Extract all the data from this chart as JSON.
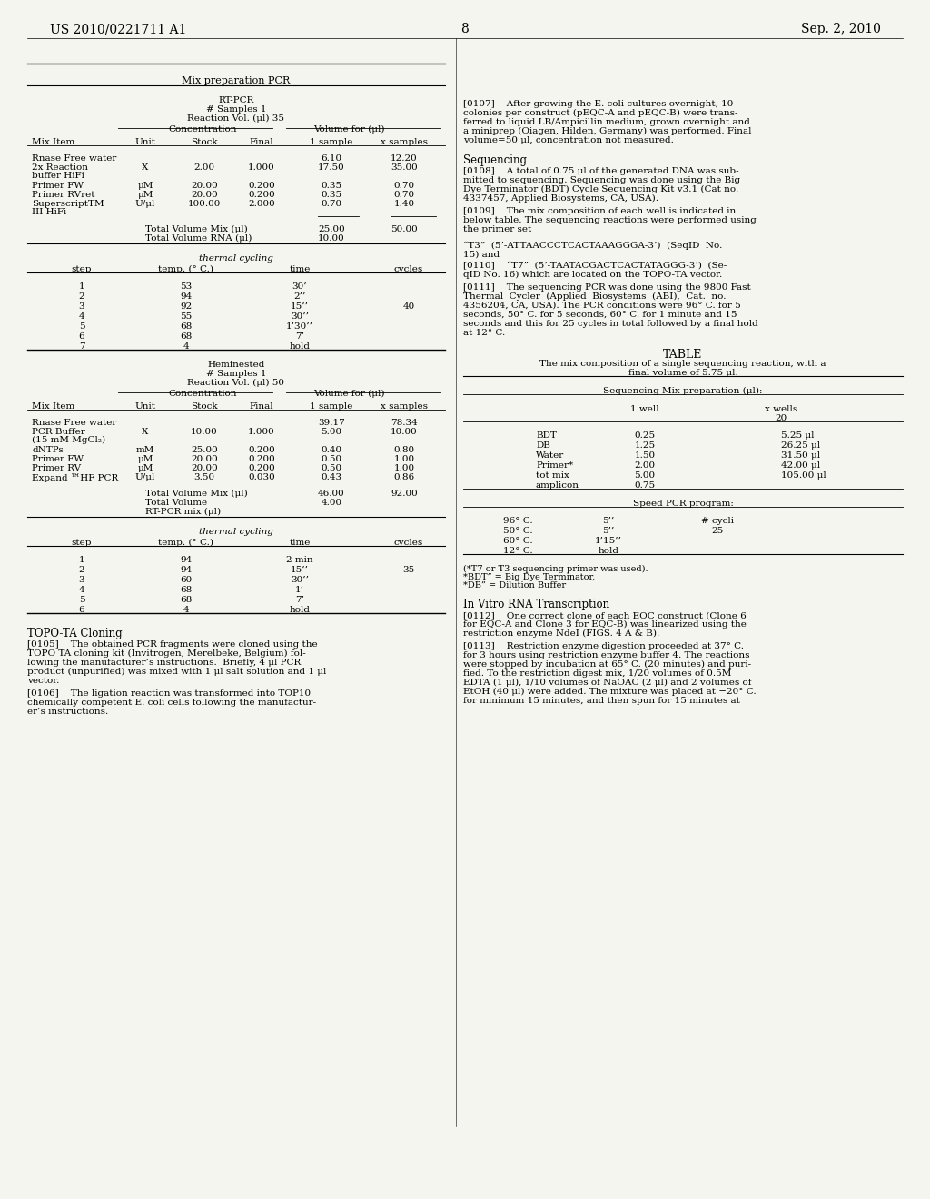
{
  "bg_color": "#f5f5f0",
  "header_left": "US 2010/0221711 A1",
  "header_right": "Sep. 2, 2010",
  "header_center": "8"
}
